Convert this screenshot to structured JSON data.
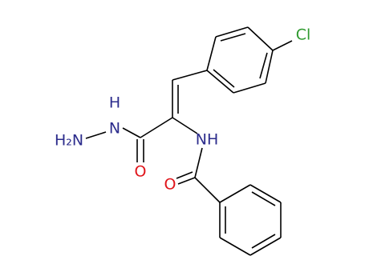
{
  "atoms": {
    "chlorine": "Cl",
    "hydrazide_h": "H",
    "hydrazide_n": "N",
    "amine": "H₂N",
    "hydrazide_o": "O",
    "amide_nh": "NH",
    "amide_o": "O"
  }
}
